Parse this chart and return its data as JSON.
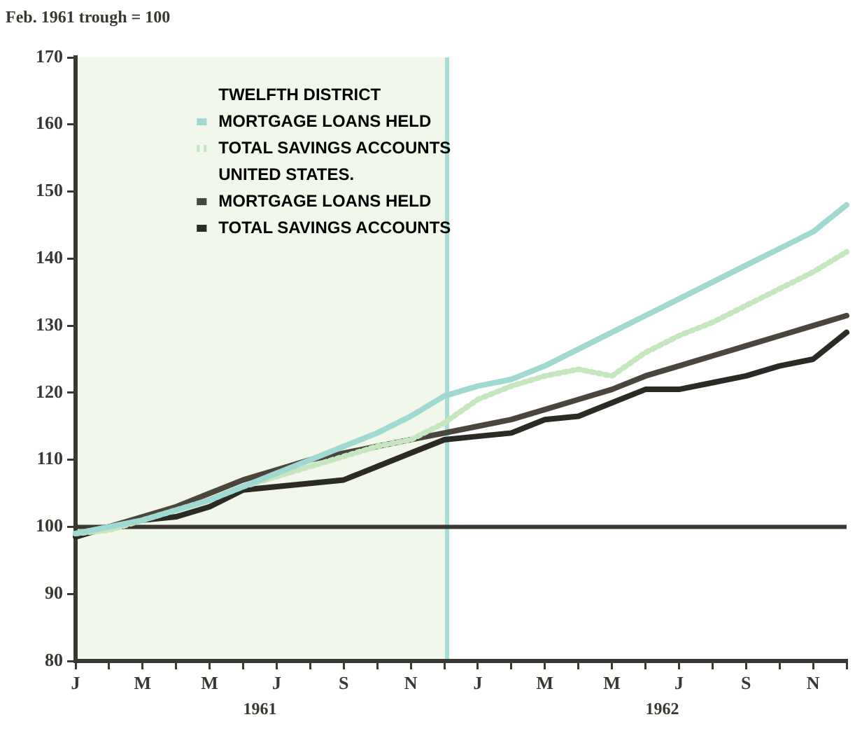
{
  "chart_data": {
    "type": "line",
    "ylabel": "Feb. 1961 trough = 100",
    "annotations": [
      "TWELFTH DISTRICT",
      "UNITED STATES.",
      "1961",
      "1962"
    ],
    "categories": [
      "J",
      null,
      "M",
      null,
      "M",
      null,
      "J",
      null,
      "S",
      null,
      "N",
      null,
      "J",
      null,
      "M",
      null,
      "M",
      null,
      "J",
      null,
      "S",
      null,
      "N",
      null
    ],
    "series": [
      {
        "name": "MORTGAGE LOANS HELD",
        "color": "#9fd9d2",
        "line_style": "solid",
        "values": [
          99,
          100,
          101,
          102.5,
          104,
          106,
          108,
          110,
          112,
          114,
          116.5,
          119.5,
          121,
          122,
          124,
          126.5,
          129,
          131.5,
          134,
          136.5,
          139,
          141.5,
          144,
          148
        ]
      },
      {
        "name": "TOTAL SAVINGS ACCOUNTS",
        "color": "#c6e6bf",
        "line_style": "dotted",
        "values": [
          99,
          99.5,
          101,
          102.5,
          104,
          106,
          107.5,
          109,
          110.5,
          112,
          113,
          115.5,
          119,
          121,
          122.5,
          123.5,
          122.5,
          126,
          128.5,
          130.5,
          133,
          135.5,
          138,
          141
        ]
      },
      {
        "name": "MORTGAGE LOANS HELD",
        "color": "#4a463e",
        "line_style": "solid",
        "values": [
          99,
          100,
          101.5,
          103,
          105,
          107,
          108.5,
          110,
          111,
          112,
          113,
          114,
          115,
          116,
          117.5,
          119,
          120.5,
          122.5,
          124,
          125.5,
          127,
          128.5,
          130,
          131.5
        ]
      },
      {
        "name": "TOTAL SAVINGS ACCOUNTS",
        "color": "#2b2a24",
        "line_style": "solid",
        "values": [
          98.5,
          100,
          101,
          101.5,
          103,
          105.5,
          106,
          106.5,
          107,
          109,
          111,
          113,
          113.5,
          114,
          116,
          116.5,
          118.5,
          120.5,
          120.5,
          121.5,
          122.5,
          124,
          125,
          129
        ]
      }
    ],
    "ylim": [
      80,
      170
    ],
    "yticks": [
      80,
      90,
      100,
      110,
      120,
      130,
      140,
      150,
      160,
      170
    ],
    "ref_lines": [
      {
        "axis": "y",
        "value": 100,
        "color": "#3a3830"
      }
    ],
    "grid": false,
    "legend": "top",
    "marker": "none"
  }
}
